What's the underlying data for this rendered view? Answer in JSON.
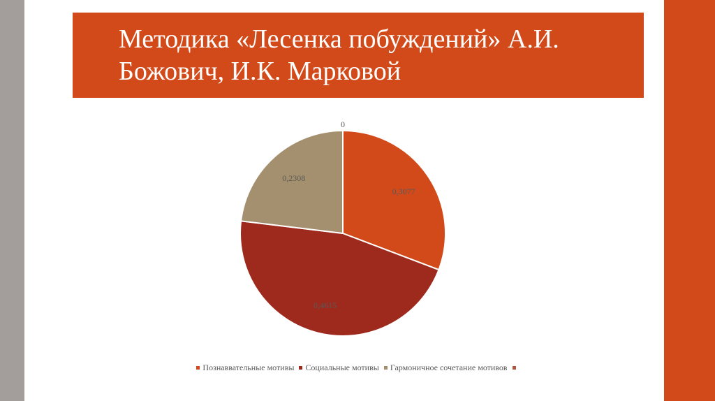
{
  "title": "Методика «Лесенка побуждений» А.И. Божович, И.К. Марковой",
  "colors": {
    "accent": "#d24a1a",
    "sidebar": "#a39e9c"
  },
  "chart_data": {
    "type": "pie",
    "title": "",
    "categories": [
      "Познаввательные мотивы",
      "Социальные мотивы",
      "Гармоничное сочетание мотивов",
      ""
    ],
    "values": [
      0.3077,
      0.4615,
      0.2308,
      0
    ],
    "data_labels": [
      "0,3077",
      "0,4615",
      "0,2308",
      "0"
    ],
    "colors": [
      "#d24a1a",
      "#9e2a1e",
      "#a4906e",
      "#b0553f"
    ],
    "legend": "bottom"
  }
}
